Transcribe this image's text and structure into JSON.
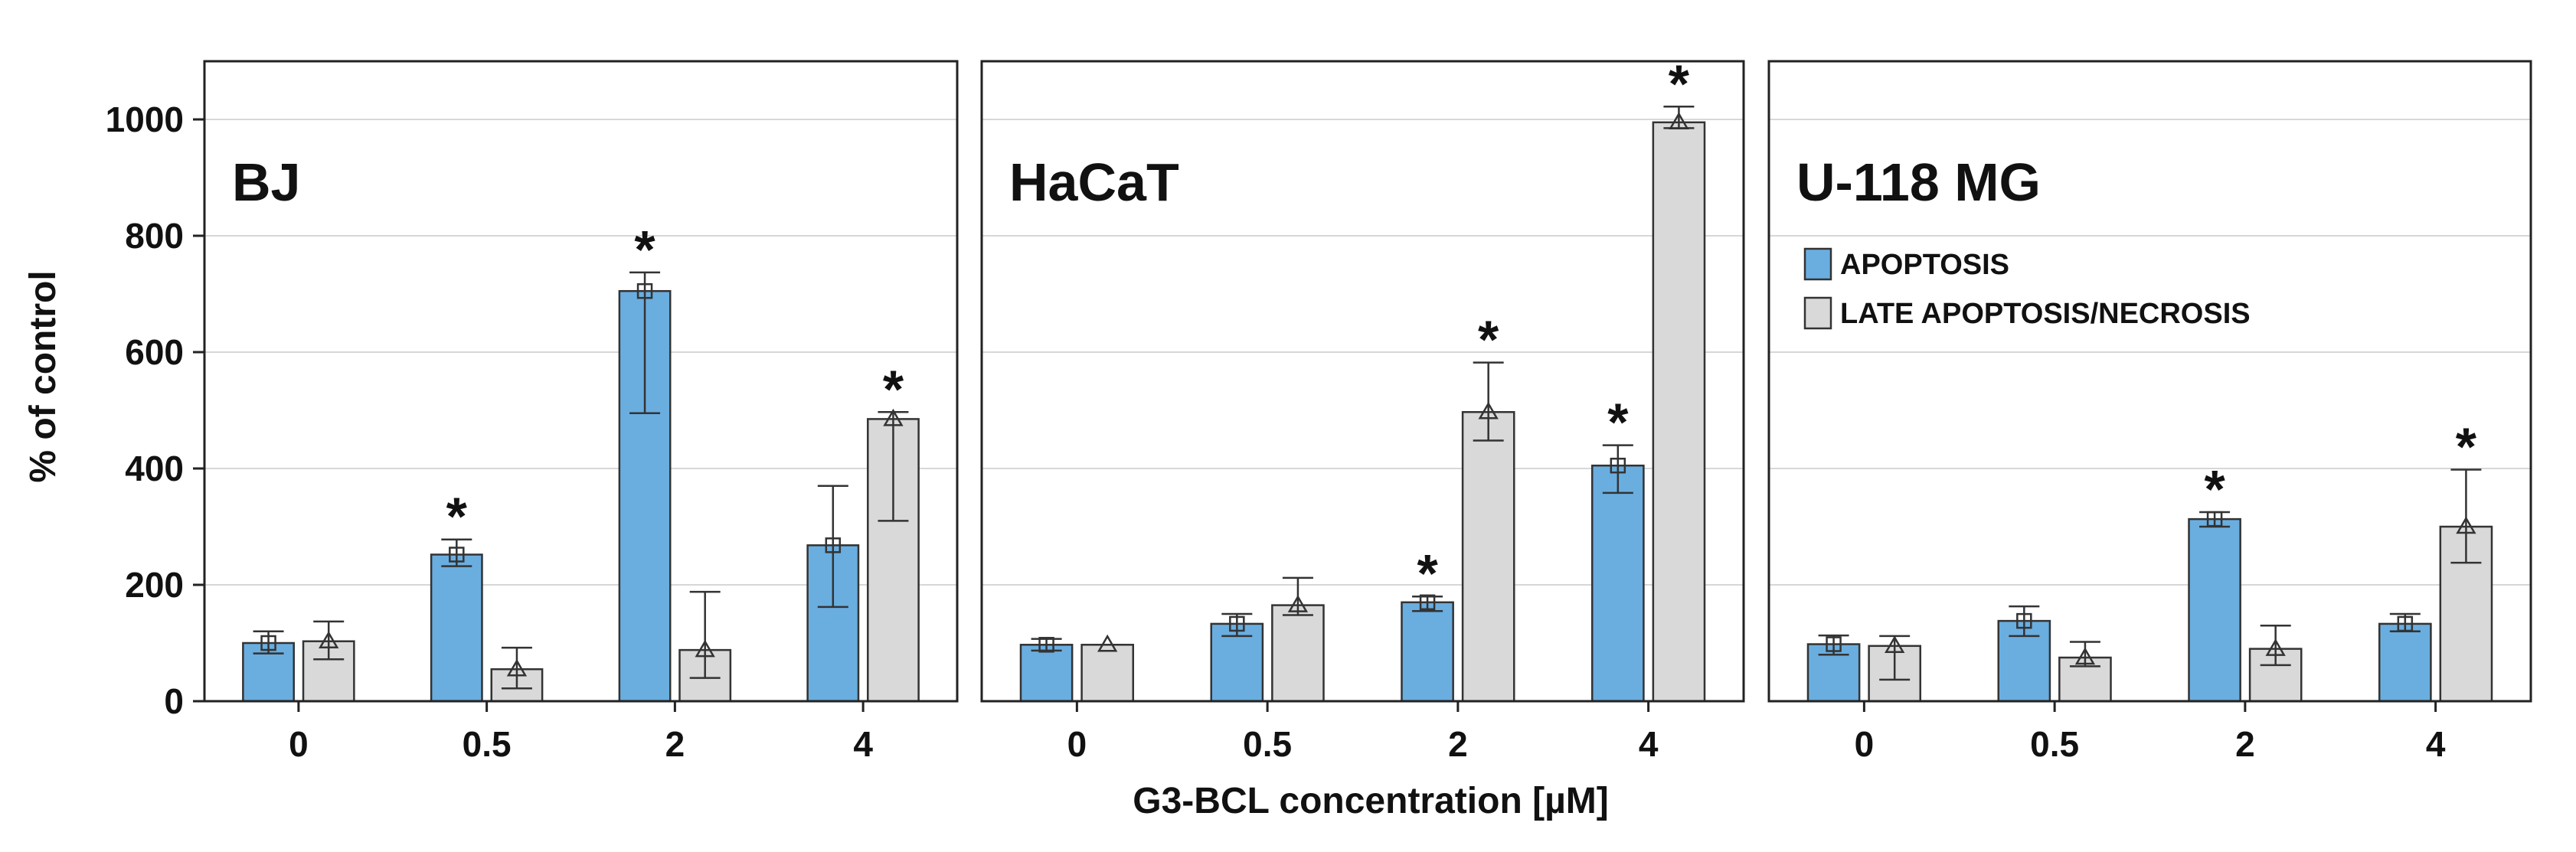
{
  "chart_data": {
    "type": "bar",
    "ylabel": "% of control",
    "xlabel": "G3-BCL concentration [µM]",
    "ylim": [
      0,
      1100
    ],
    "yticks": [
      0,
      200,
      400,
      600,
      800,
      1000
    ],
    "categories": [
      "0",
      "0.5",
      "2",
      "4"
    ],
    "grid": true,
    "legend": {
      "placement": "panel-3-upper-left",
      "entries": [
        "APOPTOSIS",
        "LATE APOPTOSIS/NECROSIS"
      ]
    },
    "colors": {
      "APOPTOSIS": "#6aaee0",
      "LATE APOPTOSIS/NECROSIS": "#d9d9d9"
    },
    "significance_marker": "*",
    "panels": [
      {
        "title": "BJ",
        "series": [
          {
            "name": "APOPTOSIS",
            "marker": "square",
            "values": [
              100,
              252,
              705,
              268
            ],
            "err_low": [
              82,
              232,
              495,
              162
            ],
            "err_high": [
              120,
              278,
              737,
              370
            ],
            "significant": [
              false,
              true,
              true,
              false
            ]
          },
          {
            "name": "LATE APOPTOSIS/NECROSIS",
            "marker": "triangle",
            "values": [
              103,
              55,
              88,
              485
            ],
            "err_low": [
              72,
              22,
              40,
              310
            ],
            "err_high": [
              137,
              92,
              188,
              497
            ],
            "significant": [
              false,
              false,
              false,
              true
            ]
          }
        ]
      },
      {
        "title": "HaCaT",
        "series": [
          {
            "name": "APOPTOSIS",
            "marker": "square",
            "values": [
              97,
              133,
              170,
              405
            ],
            "err_low": [
              87,
              112,
              155,
              358
            ],
            "err_high": [
              107,
              150,
              180,
              440
            ],
            "significant": [
              false,
              false,
              true,
              true
            ]
          },
          {
            "name": "LATE APOPTOSIS/NECROSIS",
            "marker": "triangle",
            "values": [
              97,
              165,
              497,
              995
            ],
            "err_low": [
              97,
              148,
              448,
              985
            ],
            "err_high": [
              97,
              212,
              582,
              1022
            ],
            "significant": [
              false,
              false,
              true,
              true
            ]
          }
        ]
      },
      {
        "title": "U-118 MG",
        "series": [
          {
            "name": "APOPTOSIS",
            "marker": "square",
            "values": [
              98,
              138,
              313,
              133
            ],
            "err_low": [
              80,
              112,
              300,
              120
            ],
            "err_high": [
              113,
              163,
              325,
              150
            ],
            "significant": [
              false,
              false,
              true,
              false
            ]
          },
          {
            "name": "LATE APOPTOSIS/NECROSIS",
            "marker": "triangle",
            "values": [
              95,
              75,
              90,
              300
            ],
            "err_low": [
              37,
              60,
              62,
              238
            ],
            "err_high": [
              112,
              102,
              130,
              398
            ],
            "significant": [
              false,
              false,
              false,
              true
            ]
          }
        ]
      }
    ]
  }
}
